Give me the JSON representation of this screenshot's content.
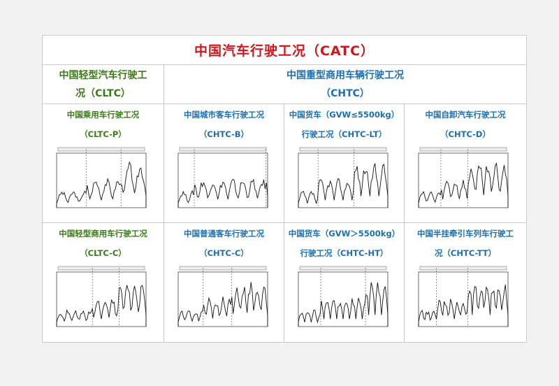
{
  "title": "中国汽车行驶工况（CATC）",
  "left_header": {
    "line1": "中国轻型汽车行驶工",
    "line2": "况（CLTC）"
  },
  "right_header": {
    "line1": "中国重型商用车辆行驶工况",
    "line2": "（CHTC）"
  },
  "panels": [
    {
      "line1": "中国乘用车行驶工况",
      "line2": "（CLTC-P）"
    },
    {
      "line1": "中国城市客车行驶工况",
      "line2": "（CHTC-B）"
    },
    {
      "line1": "中国货车（GVW≤5500kg）",
      "line2": "行驶工况（CHTC-LT）"
    },
    {
      "line1": "中国自卸汽车行驶工况",
      "line2": "（CHTC-D）"
    },
    {
      "line1": "中国轻型商用车行驶工况",
      "line2": "（CLTC-C）"
    },
    {
      "line1": "中国普通客车行驶工况",
      "line2": "（CHTC-C）"
    },
    {
      "line1": "中国货车（GVW＞5500kg）",
      "line2": "行驶工况（CHTC-HT）"
    },
    {
      "line1": "中国半挂牵引车列车行驶工",
      "line2": "况（CHTC-TT）"
    }
  ],
  "colors": {
    "title": "#d0161b",
    "light": "#3a7a17",
    "heavy": "#1d6fb0"
  }
}
